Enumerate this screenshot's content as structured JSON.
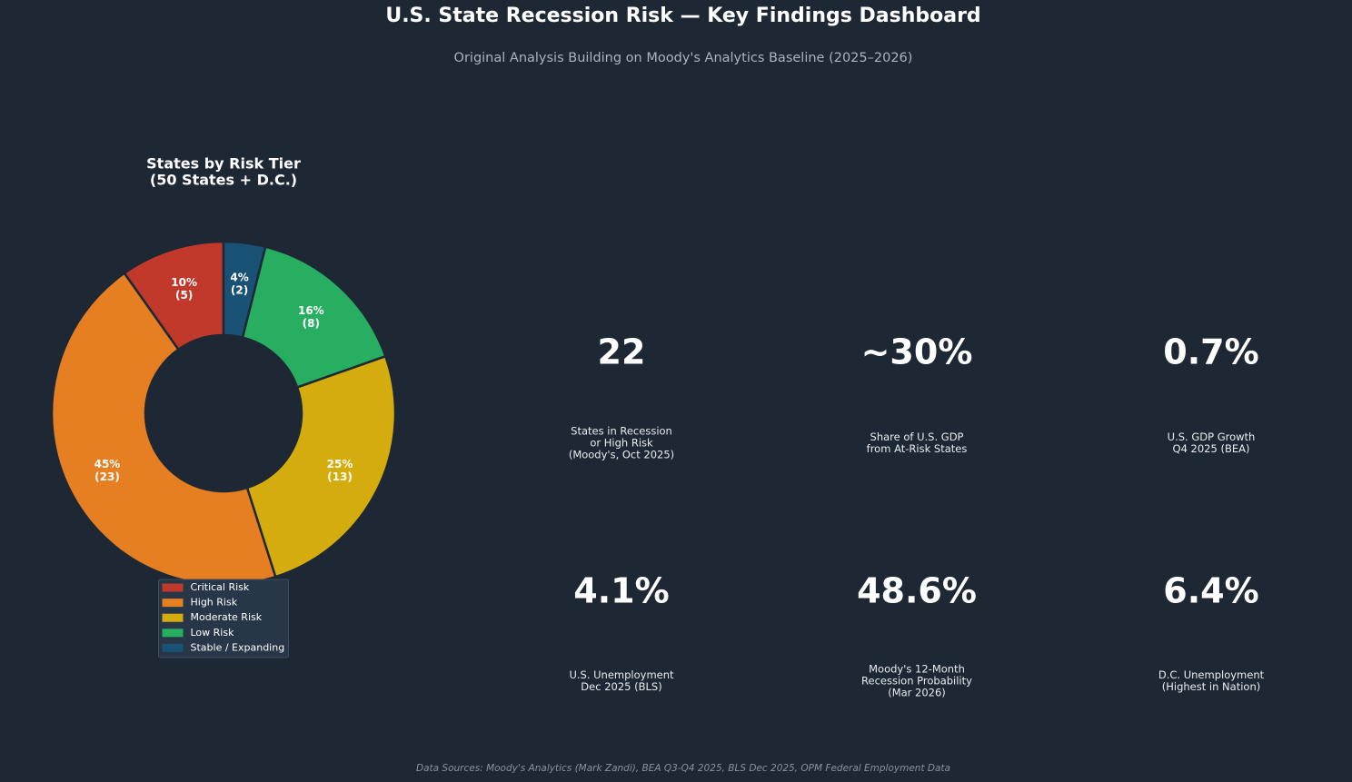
{
  "header": {
    "title": "U.S. State Recession Risk — Key Findings Dashboard",
    "subtitle": "Original Analysis Building on Moody's Analytics Baseline (2025–2026)"
  },
  "chart_data": {
    "type": "donut",
    "title": "States by Risk Tier",
    "subtitle": "(50 States + D.C.)",
    "categories": [
      "Critical Risk",
      "High Risk",
      "Moderate Risk",
      "Low Risk",
      "Stable / Expanding"
    ],
    "values": [
      5,
      23,
      13,
      8,
      2
    ],
    "value_labels": [
      "(5)",
      "(23)",
      "(13)",
      "(8)",
      "(2)"
    ],
    "percent_labels": [
      "10%",
      "45%",
      "25%",
      "16%",
      "4%"
    ],
    "colors": [
      "#c0392b",
      "#e67e22",
      "#d4ac0d",
      "#27ae60",
      "#1a5276"
    ],
    "legend": "lower center"
  },
  "kpis": [
    {
      "value": "22",
      "label": [
        "States in Recession",
        "or High Risk",
        "(Moody's, Oct 2025)"
      ]
    },
    {
      "value": "~30%",
      "label": [
        "Share of U.S. GDP",
        "from At-Risk States"
      ]
    },
    {
      "value": "0.7%",
      "label": [
        "U.S. GDP Growth",
        "Q4 2025 (BEA)"
      ]
    },
    {
      "value": "4.1%",
      "label": [
        "U.S. Unemployment",
        "Dec 2025 (BLS)"
      ]
    },
    {
      "value": "48.6%",
      "label": [
        "Moody's 12-Month",
        "Recession Probability",
        "(Mar 2026)"
      ]
    },
    {
      "value": "6.4%",
      "label": [
        "D.C. Unemployment",
        "(Highest in Nation)"
      ]
    }
  ],
  "footer": "Data Sources: Moody's Analytics (Mark Zandi), BEA Q3-Q4 2025, BLS Dec 2025, OPM Federal Employment Data"
}
